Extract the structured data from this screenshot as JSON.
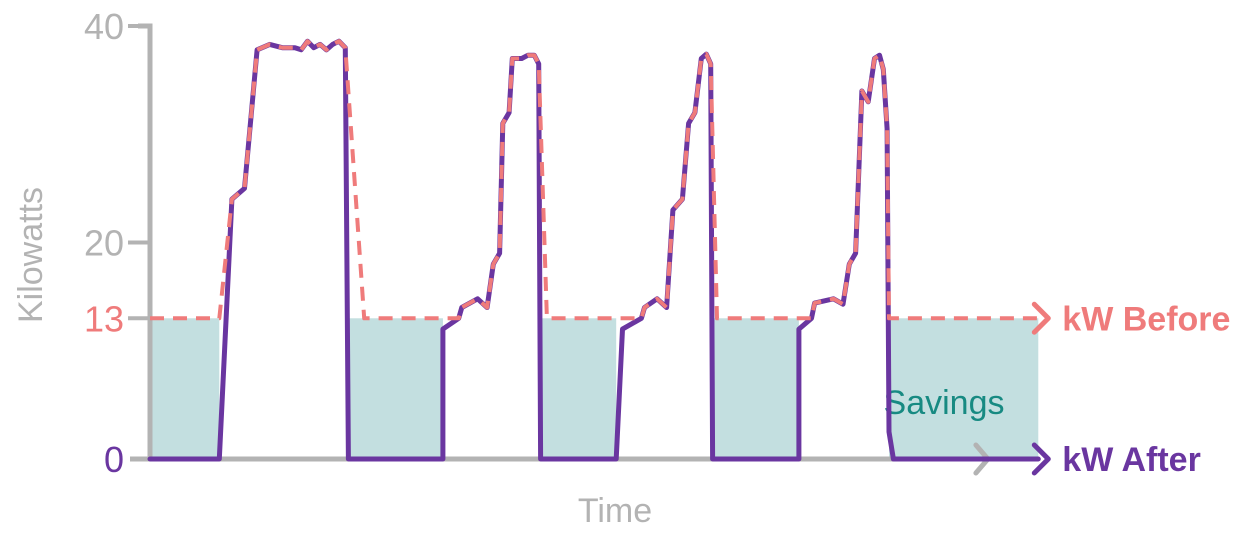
{
  "chart_data": {
    "type": "line",
    "xlabel": "Time",
    "ylabel": "Kilowatts",
    "ylim": [
      0,
      40
    ],
    "y_ticks": [
      {
        "value": 0,
        "label": "0",
        "color": "#6a36a0"
      },
      {
        "value": 13,
        "label": "13",
        "color": "#ef7b7b"
      },
      {
        "value": 20,
        "label": "20",
        "color": "#b3b3b3"
      },
      {
        "value": 40,
        "label": "40",
        "color": "#b3b3b3"
      }
    ],
    "grid": false,
    "series": [
      {
        "name": "kW Before",
        "color": "#ef7b7b",
        "dashed": true,
        "points": [
          [
            0,
            13
          ],
          [
            11,
            13
          ],
          [
            13,
            24
          ],
          [
            15,
            25
          ],
          [
            17,
            37.8
          ],
          [
            19,
            38.3
          ],
          [
            21,
            38
          ],
          [
            23,
            38
          ],
          [
            24,
            37.8
          ],
          [
            25,
            38.6
          ],
          [
            26,
            38
          ],
          [
            27,
            38.3
          ],
          [
            28,
            37.8
          ],
          [
            29,
            38.3
          ],
          [
            30,
            38.6
          ],
          [
            31,
            38
          ],
          [
            34,
            13
          ],
          [
            49,
            13
          ],
          [
            49.5,
            14
          ],
          [
            52,
            14.8
          ],
          [
            53.5,
            14
          ],
          [
            54.5,
            18
          ],
          [
            55.5,
            19
          ],
          [
            56,
            31
          ],
          [
            57,
            32
          ],
          [
            57.5,
            37
          ],
          [
            59,
            37
          ],
          [
            60,
            37.3
          ],
          [
            61,
            37.3
          ],
          [
            61.7,
            36.5
          ],
          [
            63,
            13
          ],
          [
            78,
            13
          ],
          [
            78.5,
            14
          ],
          [
            80.5,
            14.8
          ],
          [
            82,
            14
          ],
          [
            83,
            23
          ],
          [
            84.5,
            24
          ],
          [
            85.5,
            31
          ],
          [
            86.5,
            32
          ],
          [
            87.5,
            37
          ],
          [
            88.3,
            37.4
          ],
          [
            89,
            36.5
          ],
          [
            90,
            13
          ],
          [
            105,
            13
          ],
          [
            105.5,
            14.4
          ],
          [
            108.5,
            14.8
          ],
          [
            110,
            14.3
          ],
          [
            111,
            18
          ],
          [
            112,
            19
          ],
          [
            113,
            34
          ],
          [
            114,
            33
          ],
          [
            115,
            37
          ],
          [
            115.8,
            37.3
          ],
          [
            116.4,
            36
          ],
          [
            117,
            30.5
          ],
          [
            117.3,
            13
          ],
          [
            141,
            13
          ]
        ]
      },
      {
        "name": "kW After",
        "color": "#6a36a0",
        "dashed": false,
        "points": [
          [
            0,
            0
          ],
          [
            11,
            0
          ],
          [
            13,
            24
          ],
          [
            15,
            25
          ],
          [
            17,
            37.8
          ],
          [
            19,
            38.3
          ],
          [
            21,
            38
          ],
          [
            23,
            38
          ],
          [
            24,
            37.8
          ],
          [
            25,
            38.6
          ],
          [
            26,
            38
          ],
          [
            27,
            38.3
          ],
          [
            28,
            37.8
          ],
          [
            29,
            38.3
          ],
          [
            30,
            38.6
          ],
          [
            31,
            38
          ],
          [
            31.5,
            0
          ],
          [
            46.5,
            0
          ],
          [
            46.5,
            12
          ],
          [
            49,
            13
          ],
          [
            49.5,
            14
          ],
          [
            52,
            14.8
          ],
          [
            53.5,
            14
          ],
          [
            54.5,
            18
          ],
          [
            55.5,
            19
          ],
          [
            56,
            31
          ],
          [
            57,
            32
          ],
          [
            57.5,
            37
          ],
          [
            59,
            37
          ],
          [
            60,
            37.3
          ],
          [
            61,
            37.3
          ],
          [
            61.7,
            36.5
          ],
          [
            62,
            0
          ],
          [
            74,
            0
          ],
          [
            75,
            12
          ],
          [
            78,
            13
          ],
          [
            78.5,
            14
          ],
          [
            80.5,
            14.8
          ],
          [
            82,
            14
          ],
          [
            83,
            23
          ],
          [
            84.5,
            24
          ],
          [
            85.5,
            31
          ],
          [
            86.5,
            32
          ],
          [
            87.5,
            37
          ],
          [
            88.3,
            37.4
          ],
          [
            89,
            36.5
          ],
          [
            89.3,
            0
          ],
          [
            103,
            0
          ],
          [
            103,
            12
          ],
          [
            105,
            13
          ],
          [
            105.5,
            14.4
          ],
          [
            108.5,
            14.8
          ],
          [
            110,
            14.3
          ],
          [
            111,
            18
          ],
          [
            112,
            19
          ],
          [
            113,
            34
          ],
          [
            114,
            33
          ],
          [
            115,
            37
          ],
          [
            115.8,
            37.3
          ],
          [
            116.4,
            36
          ],
          [
            117,
            30.5
          ],
          [
            117.3,
            2.5
          ],
          [
            118,
            0
          ],
          [
            141,
            0
          ]
        ]
      }
    ],
    "savings_areas": [
      {
        "from": 0,
        "to": 11
      },
      {
        "from": 31.5,
        "to": 46.5
      },
      {
        "from": 62,
        "to": 74
      },
      {
        "from": 89.3,
        "to": 103
      },
      {
        "from": 117.3,
        "to": 141
      }
    ],
    "savings_label": "Savings",
    "savings_fill": "#c3dfe0",
    "savings_text_color": "#178a82",
    "axis_color": "#b3b3b3",
    "x_axis_arrow_end": 133
  }
}
